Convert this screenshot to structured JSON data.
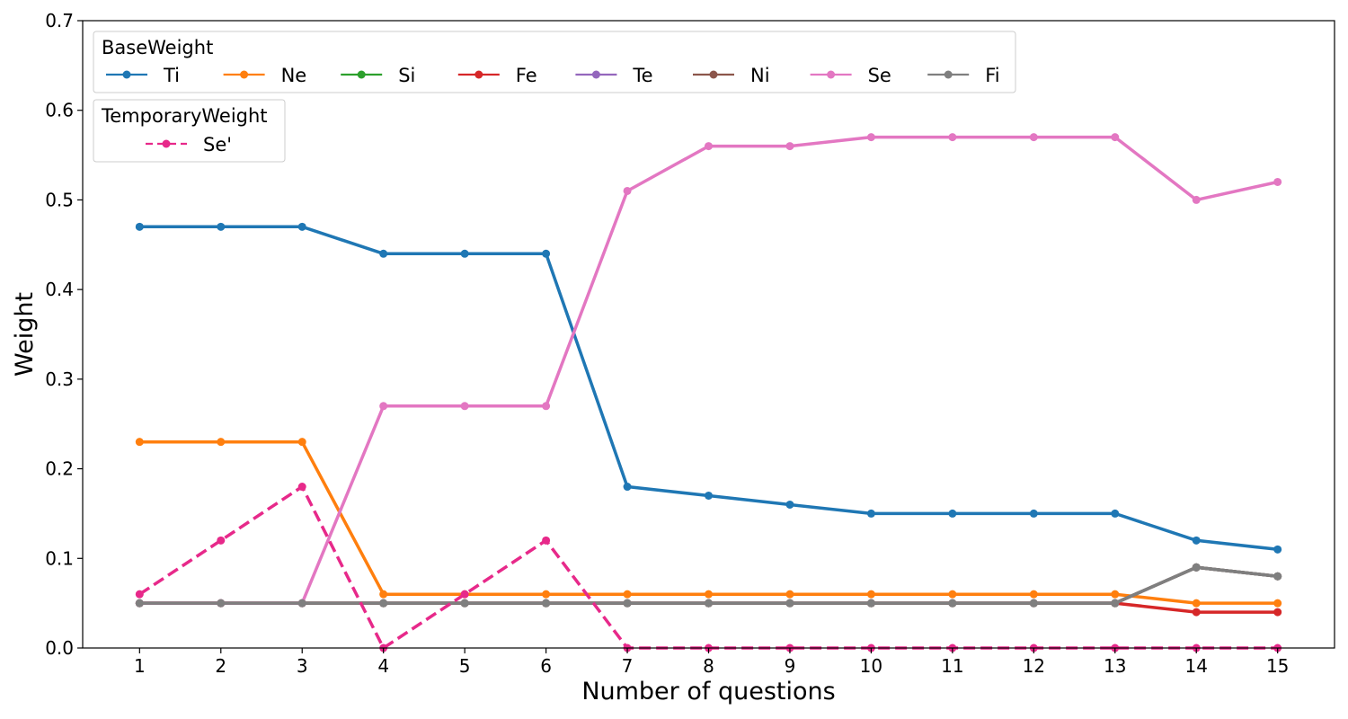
{
  "chart_data": {
    "type": "line",
    "xlabel": "Number of questions",
    "ylabel": "Weight",
    "x": [
      1,
      2,
      3,
      4,
      5,
      6,
      7,
      8,
      9,
      10,
      11,
      12,
      13,
      14,
      15
    ],
    "xlim": [
      0.3,
      15.7
    ],
    "ylim": [
      0,
      0.7
    ],
    "yticks": [
      "0.0",
      "0.1",
      "0.2",
      "0.3",
      "0.4",
      "0.5",
      "0.6",
      "0.7"
    ],
    "xticks": [
      "1",
      "2",
      "3",
      "4",
      "5",
      "6",
      "7",
      "8",
      "9",
      "10",
      "11",
      "12",
      "13",
      "14",
      "15"
    ],
    "grid": false,
    "legends": [
      {
        "title": "BaseWeight",
        "placement": "top-left",
        "entries": [
          "Ti",
          "Ne",
          "Si",
          "Fe",
          "Te",
          "Ni",
          "Se",
          "Fi"
        ]
      },
      {
        "title": "TemporaryWeight",
        "placement": "top-left",
        "entries": [
          "Se'"
        ]
      }
    ],
    "series": [
      {
        "name": "Ti",
        "color": "#1f77b4",
        "dashed": false,
        "values": [
          0.47,
          0.47,
          0.47,
          0.44,
          0.44,
          0.44,
          0.18,
          0.17,
          0.16,
          0.15,
          0.15,
          0.15,
          0.15,
          0.12,
          0.11
        ]
      },
      {
        "name": "Ne",
        "color": "#ff7f0e",
        "dashed": false,
        "values": [
          0.23,
          0.23,
          0.23,
          0.06,
          0.06,
          0.06,
          0.06,
          0.06,
          0.06,
          0.06,
          0.06,
          0.06,
          0.06,
          0.05,
          0.05
        ]
      },
      {
        "name": "Si",
        "color": "#2ca02c",
        "dashed": false,
        "values": [
          0.05,
          0.05,
          0.05,
          0.05,
          0.05,
          0.05,
          0.05,
          0.05,
          0.05,
          0.05,
          0.05,
          0.05,
          0.05,
          0.09,
          0.08
        ]
      },
      {
        "name": "Fe",
        "color": "#d62728",
        "dashed": false,
        "values": [
          0.05,
          0.05,
          0.05,
          0.05,
          0.05,
          0.05,
          0.05,
          0.05,
          0.05,
          0.05,
          0.05,
          0.05,
          0.05,
          0.04,
          0.04
        ]
      },
      {
        "name": "Te",
        "color": "#9467bd",
        "dashed": false,
        "values": [
          0.05,
          0.05,
          0.05,
          0.05,
          0.05,
          0.05,
          0.05,
          0.05,
          0.05,
          0.05,
          0.05,
          0.05,
          0.05,
          0.09,
          0.08
        ]
      },
      {
        "name": "Ni",
        "color": "#8c564b",
        "dashed": false,
        "values": [
          0.05,
          0.05,
          0.05,
          0.05,
          0.05,
          0.05,
          0.05,
          0.05,
          0.05,
          0.05,
          0.05,
          0.05,
          0.05,
          0.09,
          0.08
        ]
      },
      {
        "name": "Se",
        "color": "#e377c2",
        "dashed": false,
        "values": [
          0.05,
          0.05,
          0.05,
          0.27,
          0.27,
          0.27,
          0.51,
          0.56,
          0.56,
          0.57,
          0.57,
          0.57,
          0.57,
          0.5,
          0.52
        ]
      },
      {
        "name": "Fi",
        "color": "#7f7f7f",
        "dashed": false,
        "values": [
          0.05,
          0.05,
          0.05,
          0.05,
          0.05,
          0.05,
          0.05,
          0.05,
          0.05,
          0.05,
          0.05,
          0.05,
          0.05,
          0.09,
          0.08
        ]
      },
      {
        "name": "Se'",
        "color": "#e7298a",
        "dashed": true,
        "values": [
          0.06,
          0.12,
          0.18,
          0.0,
          0.06,
          0.12,
          0.0,
          0.0,
          0.0,
          0.0,
          0.0,
          0.0,
          0.0,
          0.0,
          0.0
        ]
      }
    ]
  }
}
